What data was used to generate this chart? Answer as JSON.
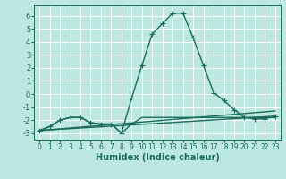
{
  "title": "",
  "xlabel": "Humidex (Indice chaleur)",
  "ylabel": "",
  "bg_color": "#bde8e2",
  "grid_color": "#ffffff",
  "line_color": "#1a6b5a",
  "xlim": [
    -0.5,
    23.5
  ],
  "ylim": [
    -3.5,
    6.8
  ],
  "xticks": [
    0,
    1,
    2,
    3,
    4,
    5,
    6,
    7,
    8,
    9,
    10,
    11,
    12,
    13,
    14,
    15,
    16,
    17,
    18,
    19,
    20,
    21,
    22,
    23
  ],
  "yticks": [
    -3,
    -2,
    -1,
    0,
    1,
    2,
    3,
    4,
    5,
    6
  ],
  "series0_x": [
    0,
    1,
    2,
    3,
    4,
    5,
    6,
    7,
    8,
    9,
    10,
    11,
    12,
    13,
    14,
    15,
    16,
    17,
    18,
    19,
    20,
    21,
    22,
    23
  ],
  "series0_y": [
    -2.8,
    -2.5,
    -2.0,
    -1.8,
    -1.8,
    -2.2,
    -2.3,
    -2.3,
    -3.0,
    -2.3,
    -1.8,
    -1.8,
    -1.8,
    -1.8,
    -1.8,
    -1.8,
    -1.8,
    -1.8,
    -1.8,
    -1.8,
    -1.8,
    -1.8,
    -1.8,
    -1.8
  ],
  "series1_x": [
    0,
    1,
    2,
    3,
    4,
    5,
    6,
    7,
    8,
    9,
    10,
    11,
    12,
    13,
    14,
    15,
    16,
    17,
    18,
    19,
    20,
    21,
    22,
    23
  ],
  "series1_y": [
    -2.8,
    -2.5,
    -2.0,
    -1.8,
    -1.8,
    -2.2,
    -2.3,
    -2.3,
    -3.0,
    -0.3,
    2.2,
    4.6,
    5.4,
    6.2,
    6.2,
    4.3,
    2.2,
    0.1,
    -0.5,
    -1.2,
    -1.8,
    -1.9,
    -1.9,
    -1.7
  ],
  "series2_x": [
    0,
    23
  ],
  "series2_y": [
    -2.8,
    -1.7
  ],
  "series3_x": [
    0,
    23
  ],
  "series3_y": [
    -2.8,
    -1.3
  ],
  "linewidth": 1.0,
  "markersize": 4.0,
  "tick_fontsize": 5.5,
  "xlabel_fontsize": 7
}
